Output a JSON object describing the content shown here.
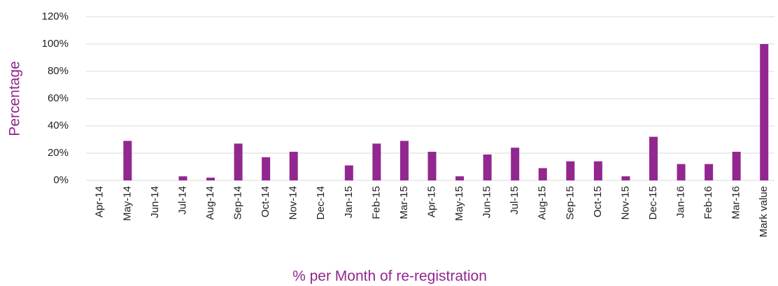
{
  "chart_data": {
    "type": "bar",
    "x_label": "% per Month of re-registration",
    "y_label": "Percentage",
    "categories": [
      "Apr-14",
      "May-14",
      "Jun-14",
      "Jul-14",
      "Aug-14",
      "Sep-14",
      "Oct-14",
      "Nov-14",
      "Dec-14",
      "Jan-15",
      "Feb-15",
      "Mar-15",
      "Apr-15",
      "May-15",
      "Jun-15",
      "Jul-15",
      "Aug-15",
      "Sep-15",
      "Oct-15",
      "Nov-15",
      "Dec-15",
      "Jan-16",
      "Feb-16",
      "Mar-16",
      "Mark value"
    ],
    "values": [
      0,
      29,
      0,
      3,
      2,
      27,
      17,
      21,
      0,
      11,
      27,
      29,
      21,
      3,
      19,
      24,
      9,
      14,
      14,
      3,
      32,
      12,
      12,
      21,
      100
    ],
    "color": "#92278f",
    "ylim": [
      0,
      120
    ],
    "yticks": [
      {
        "value": 0,
        "label": "0%"
      },
      {
        "value": 20,
        "label": "20%"
      },
      {
        "value": 40,
        "label": "40%"
      },
      {
        "value": 60,
        "label": "60%"
      },
      {
        "value": 80,
        "label": "80%"
      },
      {
        "value": 100,
        "label": "100%"
      },
      {
        "value": 120,
        "label": "120%"
      }
    ],
    "grid": true
  }
}
